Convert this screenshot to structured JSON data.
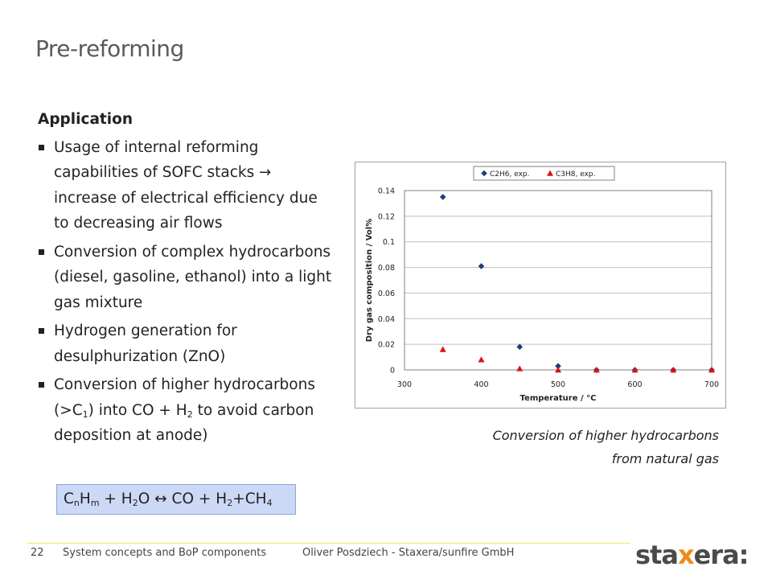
{
  "slide": {
    "title": "Pre-reforming",
    "heading": "Application",
    "bullets": [
      {
        "pre": "Usage of internal reforming capabilities of SOFC stacks ",
        "arrow": "→",
        "post": " increase of electrical efficiency due to decreasing air flows"
      },
      {
        "text": "Conversion of complex hydrocarbons (diesel, gasoline, ethanol) into a light gas mixture"
      },
      {
        "text": "Hydrogen generation for desulphurization (ZnO)"
      },
      {
        "p1": "Conversion of higher hydrocarbons (>C",
        "s1": "1",
        "p2": ") into CO + H",
        "s2": "2",
        "p3": " to avoid carbon deposition at anode)"
      }
    ],
    "equation": {
      "c": "C",
      "n": "n",
      "h": "H",
      "m": "m",
      "plus_h": " + H",
      "two_a": "2",
      "o_arrow": "O ↔ CO + H",
      "two_b": "2",
      "plus_ch": "+CH",
      "four": "4"
    },
    "caption_line1": "Conversion of higher hydrocarbons",
    "caption_line2": "from natural gas"
  },
  "footer": {
    "page_number": "22",
    "section": "System concepts and BoP components",
    "author": "Oliver Posdziech - Staxera/sunfire GmbH",
    "logo_pre": "sta",
    "logo_x": "x",
    "logo_post": "era:"
  },
  "chart_data": {
    "type": "scatter",
    "xlabel": "Temperature / °C",
    "ylabel": "Dry gas composition / Vol%",
    "xlim": [
      300,
      700
    ],
    "ylim": [
      0,
      0.14
    ],
    "xticks": [
      300,
      400,
      500,
      600,
      700
    ],
    "yticks": [
      0,
      0.02,
      0.04,
      0.06,
      0.08,
      0.1,
      0.12,
      0.14
    ],
    "grid": true,
    "legend_position": "top",
    "series": [
      {
        "name": "C2H6, exp.",
        "marker": "diamond",
        "color": "#1f3d7a",
        "x": [
          350,
          400,
          450,
          500,
          550,
          600,
          650,
          700
        ],
        "y": [
          0.135,
          0.081,
          0.018,
          0.003,
          0,
          0,
          0,
          0
        ]
      },
      {
        "name": "C3H8, exp.",
        "marker": "triangle",
        "color": "#e01010",
        "x": [
          350,
          400,
          450,
          500,
          550,
          600,
          650,
          700
        ],
        "y": [
          0.016,
          0.008,
          0.001,
          0,
          0,
          0,
          0,
          0
        ]
      }
    ]
  }
}
